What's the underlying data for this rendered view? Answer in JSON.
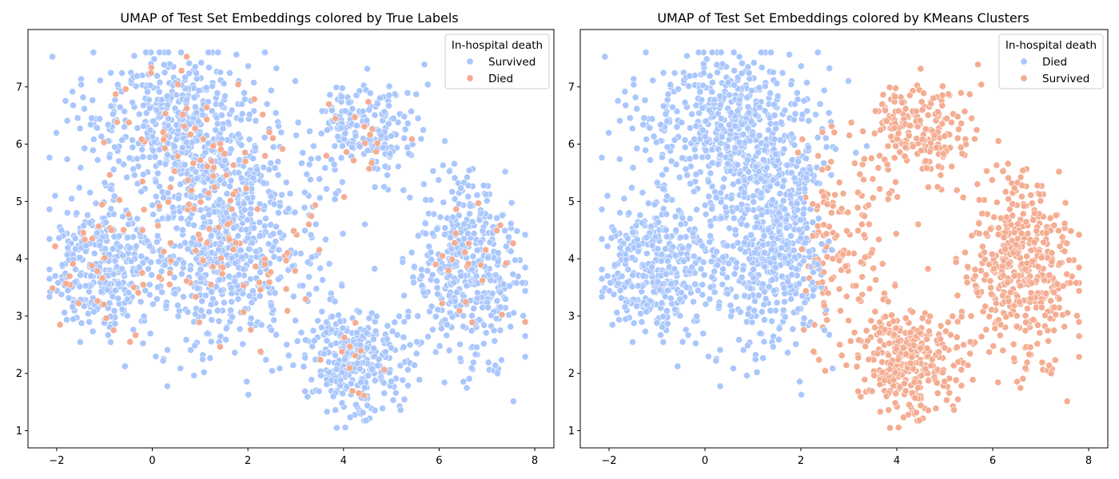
{
  "figure": {
    "point_style": "filled circles with white edge"
  },
  "chart_data": [
    {
      "type": "scatter",
      "title": "UMAP of Test Set Embeddings colored by True Labels",
      "xlabel": "",
      "ylabel": "",
      "xlim": [
        -2.6,
        8.4
      ],
      "ylim": [
        0.7,
        8.0
      ],
      "xticks": [
        -2,
        0,
        2,
        4,
        6,
        8
      ],
      "yticks": [
        1,
        2,
        3,
        4,
        5,
        6,
        7
      ],
      "grid": false,
      "legend": {
        "title": "In-hospital death",
        "placement": "top-right",
        "entries": [
          {
            "label": "Survived",
            "color": "#aac7fd"
          },
          {
            "label": "Died",
            "color": "#f4ad92"
          }
        ]
      },
      "clusters": [
        {
          "name": "upper-left",
          "cx": 0.6,
          "cy": 6.3,
          "sx": 1.0,
          "sy": 0.65
        },
        {
          "name": "left",
          "cx": -1.0,
          "cy": 3.8,
          "sx": 0.55,
          "sy": 0.6
        },
        {
          "name": "center",
          "cx": 1.6,
          "cy": 4.2,
          "sx": 1.0,
          "sy": 0.9
        },
        {
          "name": "upper-right",
          "cx": 4.5,
          "cy": 6.3,
          "sx": 0.5,
          "sy": 0.45
        },
        {
          "name": "bottom-center",
          "cx": 4.3,
          "cy": 2.2,
          "sx": 0.5,
          "sy": 0.45
        },
        {
          "name": "right",
          "cx": 6.6,
          "cy": 3.8,
          "sx": 0.6,
          "sy": 0.85
        }
      ],
      "series": [
        {
          "name": "Survived",
          "color": "#aac7fd",
          "approx_count": 2280
        },
        {
          "name": "Died",
          "color": "#f4ad92",
          "approx_count": 240
        }
      ]
    },
    {
      "type": "scatter",
      "title": "UMAP of Test Set Embeddings colored by KMeans Clusters",
      "xlabel": "",
      "ylabel": "",
      "xlim": [
        -2.6,
        8.4
      ],
      "ylim": [
        0.7,
        8.0
      ],
      "xticks": [
        -2,
        0,
        2,
        4,
        6,
        8
      ],
      "yticks": [
        1,
        2,
        3,
        4,
        5,
        6,
        7
      ],
      "grid": false,
      "legend": {
        "title": "In-hospital death",
        "placement": "top-right",
        "entries": [
          {
            "label": "Died",
            "color": "#aac7fd"
          },
          {
            "label": "Survived",
            "color": "#f4ad92"
          }
        ]
      },
      "clusters": [
        {
          "name": "upper-left",
          "cx": 0.6,
          "cy": 6.3,
          "sx": 1.0,
          "sy": 0.65,
          "label": "Died"
        },
        {
          "name": "left",
          "cx": -1.0,
          "cy": 3.8,
          "sx": 0.55,
          "sy": 0.6,
          "label": "Died"
        },
        {
          "name": "center",
          "cx": 1.6,
          "cy": 4.2,
          "sx": 1.0,
          "sy": 0.9,
          "label": "mixed, Survived for x > 2.4"
        },
        {
          "name": "upper-right",
          "cx": 4.5,
          "cy": 6.3,
          "sx": 0.5,
          "sy": 0.45,
          "label": "Survived"
        },
        {
          "name": "bottom-center",
          "cx": 4.3,
          "cy": 2.2,
          "sx": 0.5,
          "sy": 0.45,
          "label": "Survived"
        },
        {
          "name": "right",
          "cx": 6.6,
          "cy": 3.8,
          "sx": 0.6,
          "sy": 0.85,
          "label": "Survived"
        }
      ],
      "series": [
        {
          "name": "Died",
          "color": "#aac7fd",
          "approx_count": 1500
        },
        {
          "name": "Survived",
          "color": "#f4ad92",
          "approx_count": 1020
        }
      ]
    }
  ]
}
